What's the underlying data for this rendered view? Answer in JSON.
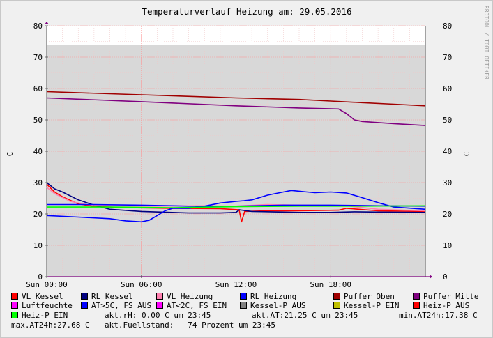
{
  "chart_data": {
    "type": "line",
    "title": "Temperaturverlauf Heizung am: 29.05.2016",
    "ylabel_left": "C",
    "ylabel_right": "C",
    "ylim": [
      0,
      80
    ],
    "xlim_hours": [
      0,
      24
    ],
    "y_ticks": [
      "0",
      "10",
      "20",
      "30",
      "40",
      "50",
      "60",
      "70",
      "80"
    ],
    "x_ticks": [
      {
        "h": 0,
        "label": "Sun 00:00"
      },
      {
        "h": 6,
        "label": "Sun 06:00"
      },
      {
        "h": 12,
        "label": "Sun 12:00"
      },
      {
        "h": 18,
        "label": "Sun 18:00"
      }
    ],
    "grid": true,
    "fill_level": 74,
    "watermark": "RRDTOOL / TOBI OETIKER",
    "series": [
      {
        "name": "VL Kessel",
        "color": "#ff0000",
        "points": [
          [
            0,
            29.5
          ],
          [
            0.5,
            27
          ],
          [
            1,
            25.5
          ],
          [
            2,
            23.2
          ],
          [
            3,
            22.4
          ],
          [
            5,
            22
          ],
          [
            8,
            21.8
          ],
          [
            11,
            21.7
          ],
          [
            12.2,
            21.3
          ],
          [
            12.35,
            17.5
          ],
          [
            12.55,
            20.8
          ],
          [
            14,
            21
          ],
          [
            16,
            21
          ],
          [
            18.5,
            21.2
          ],
          [
            19,
            21.8
          ],
          [
            21,
            21
          ],
          [
            24,
            20.8
          ]
        ]
      },
      {
        "name": "RL Kessel",
        "color": "#000080",
        "points": [
          [
            0,
            30
          ],
          [
            0.5,
            28
          ],
          [
            1,
            27
          ],
          [
            2,
            24.5
          ],
          [
            3,
            22.8
          ],
          [
            4,
            21.5
          ],
          [
            6,
            20.8
          ],
          [
            9,
            20.3
          ],
          [
            11,
            20.3
          ],
          [
            12,
            20.5
          ],
          [
            12.2,
            21.3
          ],
          [
            13,
            20.8
          ],
          [
            16,
            20.5
          ],
          [
            18,
            20.5
          ],
          [
            19.5,
            20.7
          ],
          [
            21,
            20.6
          ],
          [
            24,
            20.5
          ]
        ]
      },
      {
        "name": "VL Heizung",
        "color": "#ff80b0",
        "points": [
          [
            0,
            28.5
          ],
          [
            0.5,
            26.5
          ],
          [
            1.5,
            24
          ],
          [
            2.5,
            23
          ],
          [
            4,
            22.6
          ],
          [
            7,
            22.5
          ],
          [
            10,
            22.6
          ],
          [
            12,
            22.5
          ],
          [
            14,
            23
          ],
          [
            16,
            22.8
          ],
          [
            19,
            22.6
          ],
          [
            21,
            21.5
          ],
          [
            24,
            21
          ]
        ]
      },
      {
        "name": "RL Heizung",
        "color": "#0000ff",
        "points": [
          [
            0,
            19.5
          ],
          [
            2,
            19
          ],
          [
            4,
            18.5
          ],
          [
            5,
            17.8
          ],
          [
            6,
            17.5
          ],
          [
            6.5,
            18
          ],
          [
            7,
            19.5
          ],
          [
            7.5,
            21
          ],
          [
            8,
            21.8
          ],
          [
            9,
            21.8
          ],
          [
            10,
            22.5
          ],
          [
            11,
            23.5
          ],
          [
            12,
            24
          ],
          [
            12.5,
            24.2
          ],
          [
            13,
            24.5
          ],
          [
            14,
            26
          ],
          [
            15,
            27
          ],
          [
            15.5,
            27.5
          ],
          [
            16.5,
            27
          ],
          [
            17,
            26.8
          ],
          [
            18,
            27
          ],
          [
            19,
            26.7
          ],
          [
            20,
            25.2
          ],
          [
            21,
            23.6
          ],
          [
            22,
            22.2
          ],
          [
            24,
            21.5
          ]
        ]
      },
      {
        "name": "Puffer Oben",
        "color": "#a00000",
        "points": [
          [
            0,
            59
          ],
          [
            6,
            58
          ],
          [
            12,
            57
          ],
          [
            16,
            56.5
          ],
          [
            18,
            56
          ],
          [
            20,
            55.5
          ],
          [
            22,
            55
          ],
          [
            24,
            54.5
          ]
        ]
      },
      {
        "name": "Puffer Mitte",
        "color": "#800080",
        "points": [
          [
            0,
            57
          ],
          [
            6,
            55.8
          ],
          [
            12,
            54.5
          ],
          [
            16,
            53.8
          ],
          [
            18.5,
            53.5
          ],
          [
            19,
            52
          ],
          [
            19.5,
            50
          ],
          [
            20,
            49.5
          ],
          [
            22,
            48.8
          ],
          [
            24,
            48.2
          ]
        ]
      },
      {
        "name": "AT>5C, FS AUS",
        "color": "#0000ff",
        "points": [
          [
            0,
            23
          ],
          [
            3,
            23
          ],
          [
            6,
            22.8
          ],
          [
            9,
            22.5
          ],
          [
            12,
            22.5
          ],
          [
            15,
            22.8
          ],
          [
            18,
            22.8
          ],
          [
            21,
            22.6
          ],
          [
            24,
            22.5
          ]
        ]
      },
      {
        "name": "Heiz-P EIN",
        "color": "#00ff00",
        "points": [
          [
            0,
            22.2
          ],
          [
            4,
            22.2
          ],
          [
            8,
            22
          ],
          [
            12,
            22.3
          ],
          [
            16,
            22.5
          ],
          [
            20,
            22.5
          ],
          [
            24,
            22.6
          ]
        ]
      }
    ],
    "legend": [
      {
        "label": "VL Kessel",
        "color": "#ff0000"
      },
      {
        "label": "RL Kessel",
        "color": "#000080"
      },
      {
        "label": "VL Heizung",
        "color": "#ff80b0"
      },
      {
        "label": "RL Heizung",
        "color": "#0000ff"
      },
      {
        "label": "Puffer Oben",
        "color": "#a00000"
      },
      {
        "label": "Puffer Mitte",
        "color": "#800080"
      },
      {
        "label": "Luftfeuchte",
        "color": "#ff00ff"
      },
      {
        "label": "AT>5C, FS AUS",
        "color": "#0000ff"
      },
      {
        "label": "AT<2C, FS EIN",
        "color": "#ff00ff"
      },
      {
        "label": "Kessel-P AUS",
        "color": "#808080"
      },
      {
        "label": "Kessel-P EIN",
        "color": "#c0c000"
      },
      {
        "label": "Heiz-P AUS",
        "color": "#ff0000"
      },
      {
        "label": "Heiz-P EIN",
        "color": "#00ff00"
      }
    ],
    "info": {
      "rh": "akt.rH: 0.00 C um 23:45",
      "at": "akt.AT:21.25 C um 23:45",
      "min": "min.AT24h:17.38 C",
      "max": "max.AT24h:27.68 C",
      "fill": "akt.Fuellstand:   74 Prozent um 23:45"
    }
  }
}
